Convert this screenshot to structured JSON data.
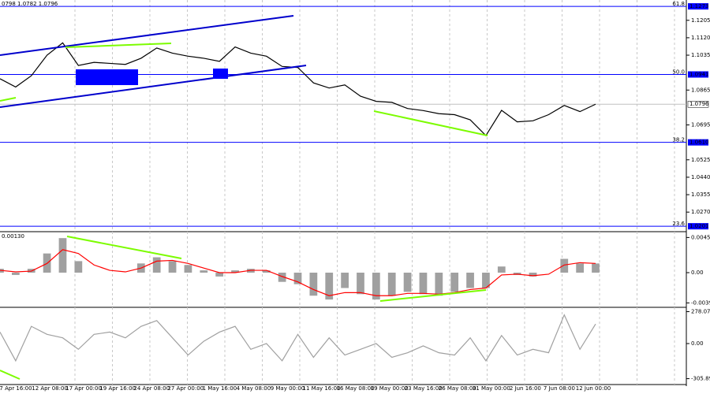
{
  "chart_data": [
    {
      "type": "line",
      "header": "0798 1.0782 1.0796",
      "color": "#000000",
      "x_labels": [
        "7 Apr 16:00",
        "12 Apr 08:00",
        "17 Apr 00:00",
        "19 Apr 16:00",
        "24 Apr 08:00",
        "27 Apr 00:00",
        "1 May 16:00",
        "4 May 08:00",
        "9 May 00:00",
        "11 May 16:00",
        "16 May 08:00",
        "19 May 00:00",
        "23 May 16:00",
        "26 May 08:00",
        "31 May 00:00",
        "2 Jun 16:00",
        "7 Jun 08:00",
        "12 Jun 00:00"
      ],
      "values": [
        1.092,
        1.088,
        1.0935,
        1.1035,
        1.1095,
        1.0985,
        1.1,
        1.0995,
        1.099,
        1.102,
        1.107,
        1.1045,
        1.103,
        1.102,
        1.1005,
        1.1075,
        1.1045,
        1.103,
        1.098,
        1.0975,
        1.09,
        1.0875,
        1.089,
        1.0835,
        1.081,
        1.0805,
        1.0775,
        1.0765,
        1.075,
        1.0745,
        1.072,
        1.0643,
        1.0766,
        1.071,
        1.0715,
        1.0745,
        1.079,
        1.076,
        1.0796
      ],
      "ylim": [
        1.019,
        1.1304
      ],
      "yticks": [
        {
          "value": 1.1205,
          "label": "1.1205"
        },
        {
          "value": 1.112,
          "label": "1.1120"
        },
        {
          "value": 1.1035,
          "label": "1.1035"
        },
        {
          "value": 1.0865,
          "label": "1.0865"
        },
        {
          "value": 1.0695,
          "label": "1.0695"
        },
        {
          "value": 1.0525,
          "label": "1.0525"
        },
        {
          "value": 1.044,
          "label": "1.0440"
        },
        {
          "value": 1.0355,
          "label": "1.0355"
        },
        {
          "value": 1.027,
          "label": "1.0270"
        }
      ],
      "levels": [
        {
          "name": "61.8",
          "value": 1.1273,
          "label": "1.1273"
        },
        {
          "name": "50.0",
          "value": 1.0941,
          "label": "1.0941"
        },
        {
          "name": "38.2",
          "value": 1.061,
          "label": "1.0610"
        },
        {
          "name": "23.6",
          "value": 1.0201,
          "label": "1.0201"
        }
      ],
      "level_color": "#0000ff",
      "last_price": {
        "value": 1.0796,
        "label": "1.0796"
      },
      "grid": true
    },
    {
      "type": "bar",
      "header": "0.00130",
      "color": "#a0a0a0",
      "signal_color": "#ff0000",
      "values": [
        0.0005,
        -0.0003,
        0.0005,
        0.0025,
        0.0045,
        0.0015,
        0,
        0,
        0,
        0.0012,
        0.002,
        0.0015,
        0.001,
        0.0003,
        -0.0005,
        0.0003,
        0.0005,
        0.0003,
        -0.0012,
        -0.0015,
        -0.003,
        -0.0035,
        -0.002,
        -0.0028,
        -0.0035,
        -0.003,
        -0.0025,
        -0.0028,
        -0.003,
        -0.0025,
        -0.002,
        -0.002,
        0.0008,
        -0.0003,
        -0.0005,
        0,
        0.0018,
        0.0012,
        0.0012
      ],
      "signal": [
        0.0003,
        0.0001,
        0.0002,
        0.0012,
        0.003,
        0.0025,
        0.001,
        0.0003,
        0.0001,
        0.0006,
        0.0015,
        0.0016,
        0.0012,
        0.0006,
        0,
        0,
        0.0003,
        0.0003,
        -0.0005,
        -0.0012,
        -0.0022,
        -0.003,
        -0.0026,
        -0.0026,
        -0.003,
        -0.003,
        -0.0027,
        -0.0027,
        -0.0028,
        -0.0026,
        -0.0022,
        -0.002,
        -0.0003,
        -0.0002,
        -0.0004,
        -0.0002,
        0.001,
        0.0013,
        0.0012
      ],
      "ylim": [
        -0.00431,
        0.00503
      ],
      "yticks": [
        0.00458,
        {
          "value": 0,
          "label": "0.00"
        },
        -0.00394
      ]
    },
    {
      "type": "line",
      "color": "#a0a0a0",
      "values": [
        100,
        -150,
        150,
        80,
        50,
        -50,
        80,
        100,
        50,
        150,
        200,
        50,
        -100,
        20,
        100,
        150,
        -50,
        0,
        -150,
        80,
        -120,
        50,
        -100,
        -50,
        0,
        -120,
        -80,
        -20,
        -80,
        -100,
        50,
        -150,
        70,
        -100,
        -50,
        -80,
        250,
        -50,
        170
      ],
      "ylim": [
        -357,
        302
      ],
      "yticks": [
        278.0761,
        {
          "value": 0,
          "label": "0.00"
        },
        -305.892
      ]
    }
  ]
}
